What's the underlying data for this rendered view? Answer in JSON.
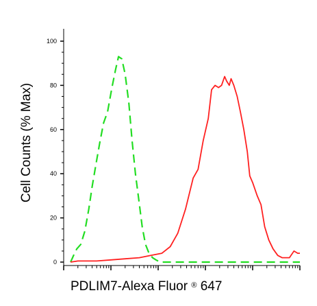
{
  "chart_data": {
    "type": "line",
    "xlabel": {
      "main": "PDLIM7-Alexa Fluor",
      "mark": "®",
      "suffix": " 647"
    },
    "ylabel": "Cell Counts (% Max)",
    "x_scale": "log",
    "xlim": [
      1,
      100000
    ],
    "ylim": [
      0,
      100
    ],
    "y_ticks": [
      "0",
      "20",
      "40",
      "60",
      "80",
      "100"
    ],
    "grid": false,
    "legend": "none",
    "series": [
      {
        "style": "dashed",
        "color": "#22dd22",
        "points": [
          [
            1.4,
            0
          ],
          [
            1.7,
            4
          ],
          [
            1.9,
            6
          ],
          [
            2.3,
            8
          ],
          [
            2.8,
            14
          ],
          [
            3.4,
            24
          ],
          [
            4.0,
            34
          ],
          [
            4.8,
            44
          ],
          [
            5.8,
            54
          ],
          [
            7.0,
            63
          ],
          [
            8.5,
            68
          ],
          [
            10.5,
            79
          ],
          [
            12.5,
            87
          ],
          [
            14.5,
            93
          ],
          [
            17,
            92
          ],
          [
            20,
            85
          ],
          [
            24,
            72
          ],
          [
            28,
            55
          ],
          [
            33,
            40
          ],
          [
            39,
            28
          ],
          [
            46,
            16
          ],
          [
            54,
            8
          ],
          [
            64,
            4
          ],
          [
            76,
            2
          ],
          [
            90,
            1
          ],
          [
            110,
            0
          ],
          [
            100000,
            0
          ]
        ]
      },
      {
        "style": "solid",
        "color": "#ff2020",
        "points": [
          [
            1.4,
            0
          ],
          [
            2,
            0.5
          ],
          [
            5,
            0.5
          ],
          [
            10,
            1
          ],
          [
            20,
            1.5
          ],
          [
            40,
            2
          ],
          [
            70,
            3
          ],
          [
            120,
            4
          ],
          [
            180,
            7
          ],
          [
            260,
            13
          ],
          [
            380,
            24
          ],
          [
            550,
            38
          ],
          [
            700,
            42
          ],
          [
            900,
            55
          ],
          [
            1150,
            65
          ],
          [
            1350,
            78
          ],
          [
            1600,
            80
          ],
          [
            1900,
            79
          ],
          [
            2200,
            80
          ],
          [
            2550,
            84
          ],
          [
            2800,
            82
          ],
          [
            3200,
            80
          ],
          [
            3500,
            83
          ],
          [
            4000,
            80
          ],
          [
            4700,
            75
          ],
          [
            5500,
            68
          ],
          [
            6500,
            60
          ],
          [
            7700,
            50
          ],
          [
            8700,
            39
          ],
          [
            10000,
            36
          ],
          [
            12500,
            30
          ],
          [
            15000,
            26
          ],
          [
            18000,
            16
          ],
          [
            22000,
            10
          ],
          [
            27000,
            6
          ],
          [
            34000,
            3
          ],
          [
            42000,
            2
          ],
          [
            52000,
            2
          ],
          [
            60000,
            2
          ],
          [
            75000,
            5
          ],
          [
            90000,
            4
          ],
          [
            100000,
            4
          ]
        ]
      }
    ]
  }
}
